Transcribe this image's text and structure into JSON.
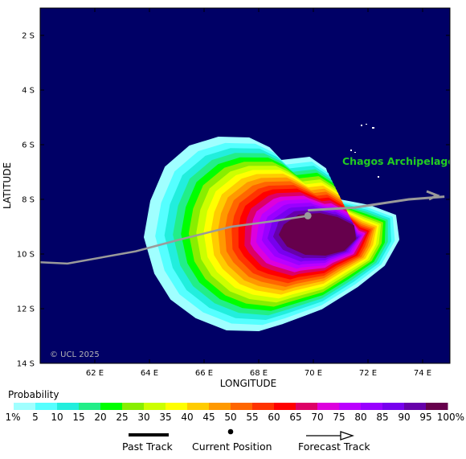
{
  "axes": {
    "x_title": "LONGITUDE",
    "y_title": "LATITUDE",
    "x_ticks": [
      "62 E",
      "64 E",
      "66 E",
      "68 E",
      "70 E",
      "72 E",
      "74 E"
    ],
    "y_ticks": [
      "2 S",
      "4 S",
      "6 S",
      "8 S",
      "10 S",
      "12 S",
      "14 S"
    ]
  },
  "map": {
    "place_label": "Chagos Archipelago",
    "copyright": "© UCL 2025",
    "ocean_color": "#000066",
    "place_label_color": "#22cc22",
    "track_color": "#9a9a9a"
  },
  "legend": {
    "title": "Probability",
    "labels": [
      "1%",
      "5",
      "10",
      "15",
      "20",
      "25",
      "30",
      "35",
      "40",
      "45",
      "50",
      "55",
      "60",
      "65",
      "70",
      "75",
      "80",
      "85",
      "90",
      "95",
      "100%"
    ],
    "colors": [
      "#a0ffff",
      "#55ffff",
      "#22eedd",
      "#22ee88",
      "#00ff00",
      "#88ee00",
      "#ccff00",
      "#ffff00",
      "#ffcc00",
      "#ff9900",
      "#ff6600",
      "#ff3300",
      "#ff0000",
      "#dd0066",
      "#dd00dd",
      "#bb00ff",
      "#9900ff",
      "#7700ee",
      "#6600aa",
      "#66004c"
    ]
  },
  "track_legend": {
    "past": "Past Track",
    "current": "Current Position",
    "forecast": "Forecast Track"
  },
  "chart_data": {
    "type": "probability-map",
    "xlabel": "LONGITUDE",
    "ylabel": "LATITUDE",
    "x_range_deg_e": [
      60.0,
      75.0
    ],
    "y_range_deg_s": [
      1.0,
      14.0
    ],
    "past_track": [
      [
        60.0,
        10.3
      ],
      [
        61.0,
        10.35
      ],
      [
        63.5,
        9.9
      ],
      [
        65.0,
        9.5
      ],
      [
        67.0,
        9.0
      ],
      [
        68.5,
        8.8
      ],
      [
        69.8,
        8.6
      ]
    ],
    "current_position": [
      69.8,
      8.6
    ],
    "forecast_track": [
      [
        69.8,
        8.4
      ],
      [
        71.5,
        8.3
      ],
      [
        73.5,
        8.0
      ],
      [
        74.8,
        7.9
      ]
    ],
    "probability_levels": [
      1,
      5,
      10,
      15,
      20,
      25,
      30,
      35,
      40,
      45,
      50,
      55,
      60,
      65,
      70,
      75,
      80,
      85,
      90,
      95,
      100
    ]
  }
}
